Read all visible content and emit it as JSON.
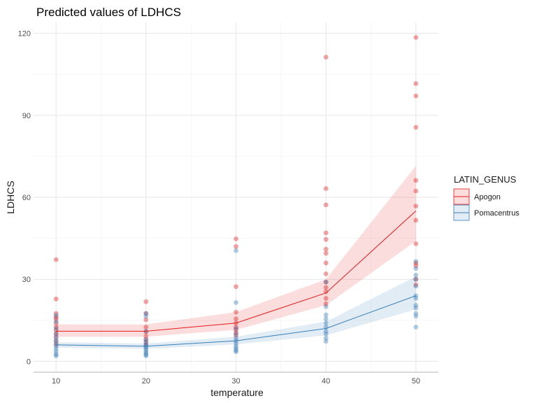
{
  "chart_data": {
    "type": "line",
    "title": "Predicted values of LDHCS",
    "xlabel": "temperature",
    "ylabel": "LDHCS",
    "xlim": [
      7.5,
      52.5
    ],
    "ylim": [
      -4,
      124
    ],
    "x_ticks": [
      10,
      20,
      30,
      40,
      50
    ],
    "y_ticks": [
      0,
      30,
      60,
      90,
      120
    ],
    "grid": true,
    "legend": {
      "title": "LATIN_GENUS",
      "position": "right"
    },
    "series": [
      {
        "name": "Apogon",
        "color": "#E41A1C",
        "x": [
          10,
          20,
          30,
          40,
          50
        ],
        "predicted": [
          11,
          11,
          14,
          25,
          55
        ],
        "ci_low": [
          9,
          9,
          11.5,
          20.5,
          44
        ],
        "ci_high": [
          13.5,
          13.5,
          18,
          30,
          71.5
        ],
        "points": [
          [
            10,
            37.2
          ],
          [
            10,
            22.8
          ],
          [
            10,
            17.5
          ],
          [
            10,
            16.2
          ],
          [
            10,
            15.5
          ],
          [
            10,
            14.0
          ],
          [
            10,
            12.6
          ],
          [
            10,
            11.4
          ],
          [
            10,
            10.2
          ],
          [
            10,
            9.0
          ],
          [
            10,
            7.5
          ],
          [
            10,
            6.2
          ],
          [
            20,
            21.8
          ],
          [
            20,
            17.5
          ],
          [
            20,
            15.2
          ],
          [
            20,
            12.5
          ],
          [
            20,
            10.8
          ],
          [
            20,
            9.2
          ],
          [
            20,
            8.0
          ],
          [
            20,
            7.0
          ],
          [
            20,
            6.0
          ],
          [
            30,
            44.8
          ],
          [
            30,
            42.0
          ],
          [
            30,
            27.3
          ],
          [
            30,
            18.0
          ],
          [
            30,
            15.5
          ],
          [
            30,
            14.0
          ],
          [
            30,
            12.5
          ],
          [
            30,
            11.5
          ],
          [
            30,
            10.5
          ],
          [
            30,
            9.5
          ],
          [
            40,
            111.3
          ],
          [
            40,
            63.2
          ],
          [
            40,
            57.2
          ],
          [
            40,
            47.0
          ],
          [
            40,
            44.6
          ],
          [
            40,
            41.0
          ],
          [
            40,
            39.5
          ],
          [
            40,
            36.0
          ],
          [
            40,
            32.0
          ],
          [
            40,
            29.0
          ],
          [
            40,
            27.0
          ],
          [
            40,
            25.5
          ],
          [
            40,
            23.0
          ],
          [
            40,
            21.0
          ],
          [
            50,
            118.5
          ],
          [
            50,
            101.6
          ],
          [
            50,
            97.1
          ],
          [
            50,
            85.6
          ],
          [
            50,
            66.2
          ],
          [
            50,
            62.3
          ],
          [
            50,
            56.8
          ],
          [
            50,
            51.6
          ],
          [
            50,
            43.0
          ],
          [
            50,
            36.0
          ],
          [
            50,
            35.0
          ],
          [
            50,
            30.0
          ],
          [
            50,
            28.0
          ]
        ]
      },
      {
        "name": "Pomacentrus",
        "color": "#377EB8",
        "x": [
          10,
          20,
          30,
          40,
          50
        ],
        "predicted": [
          6,
          5.5,
          7.5,
          12,
          24
        ],
        "ci_low": [
          5,
          4.5,
          6.2,
          9.5,
          19
        ],
        "ci_high": [
          7,
          6.5,
          9,
          14.5,
          31
        ],
        "points": [
          [
            10,
            16.8
          ],
          [
            10,
            14.5
          ],
          [
            10,
            12.0
          ],
          [
            10,
            10.0
          ],
          [
            10,
            8.6
          ],
          [
            10,
            7.5
          ],
          [
            10,
            6.5
          ],
          [
            10,
            5.5
          ],
          [
            10,
            4.5
          ],
          [
            10,
            3.5
          ],
          [
            10,
            2.5
          ],
          [
            10,
            2.0
          ],
          [
            20,
            17.5
          ],
          [
            20,
            16.5
          ],
          [
            20,
            11.0
          ],
          [
            20,
            8.0
          ],
          [
            20,
            7.0
          ],
          [
            20,
            6.0
          ],
          [
            20,
            5.5
          ],
          [
            20,
            5.0
          ],
          [
            20,
            4.3
          ],
          [
            20,
            3.6
          ],
          [
            20,
            3.0
          ],
          [
            20,
            2.4
          ],
          [
            20,
            2.0
          ],
          [
            30,
            40.5
          ],
          [
            30,
            21.5
          ],
          [
            30,
            12.0
          ],
          [
            30,
            10.0
          ],
          [
            30,
            8.5
          ],
          [
            30,
            7.5
          ],
          [
            30,
            6.5
          ],
          [
            30,
            5.5
          ],
          [
            30,
            4.8
          ],
          [
            30,
            4.0
          ],
          [
            30,
            3.5
          ],
          [
            40,
            29.0
          ],
          [
            40,
            20.0
          ],
          [
            40,
            17.0
          ],
          [
            40,
            15.5
          ],
          [
            40,
            14.0
          ],
          [
            40,
            12.5
          ],
          [
            40,
            11.0
          ],
          [
            40,
            10.0
          ],
          [
            40,
            8.5
          ],
          [
            40,
            7.3
          ],
          [
            50,
            36.5
          ],
          [
            50,
            34.0
          ],
          [
            50,
            31.5
          ],
          [
            50,
            30.0
          ],
          [
            50,
            27.5
          ],
          [
            50,
            24.0
          ],
          [
            50,
            23.0
          ],
          [
            50,
            20.5
          ],
          [
            50,
            19.5
          ],
          [
            50,
            17.5
          ],
          [
            50,
            16.5
          ],
          [
            50,
            12.5
          ]
        ]
      }
    ]
  }
}
